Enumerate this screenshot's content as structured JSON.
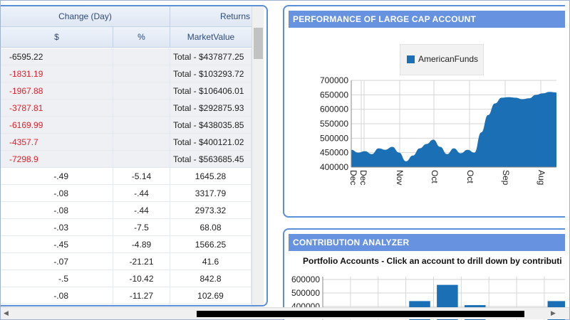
{
  "grid": {
    "header_top": [
      "Change (Day)",
      "Returns"
    ],
    "header_sub": [
      "$",
      "%",
      "MarketValue"
    ],
    "totals": [
      {
        "change": "-6595.22",
        "market": "Total - $437877.25",
        "neg": false
      },
      {
        "change": "-1831.19",
        "market": "Total - $103293.72",
        "neg": true
      },
      {
        "change": "-1967.88",
        "market": "Total - $106406.01",
        "neg": true
      },
      {
        "change": "-3787.81",
        "market": "Total - $292875.93",
        "neg": true
      },
      {
        "change": "-6169.99",
        "market": "Total - $438035.85",
        "neg": true
      },
      {
        "change": "-4357.7",
        "market": "Total - $400121.02",
        "neg": true
      },
      {
        "change": "-7298.9",
        "market": "Total - $563685.45",
        "neg": true
      }
    ],
    "details": [
      {
        "change": "-.49",
        "pct": "-5.14",
        "market": "1645.28"
      },
      {
        "change": "-.08",
        "pct": "-.44",
        "market": "3317.79"
      },
      {
        "change": "-.08",
        "pct": "-.44",
        "market": "2973.32"
      },
      {
        "change": "-.03",
        "pct": "-7.5",
        "market": "68.08"
      },
      {
        "change": "-.45",
        "pct": "-4.89",
        "market": "1566.25"
      },
      {
        "change": "-.07",
        "pct": "-21.21",
        "market": "41.6"
      },
      {
        "change": "-.5",
        "pct": "-10.42",
        "market": "842.8"
      },
      {
        "change": "-.08",
        "pct": "-11.27",
        "market": "102.69"
      }
    ]
  },
  "performance": {
    "title": "PERFORMANCE OF LARGE CAP ACCOUNT",
    "legend_label": "AmericanFunds"
  },
  "contribution": {
    "title": "CONTRIBUTION ANALYZER",
    "subtitle": "Portfolio Accounts - Click an account to drill down by contributi"
  },
  "colors": {
    "series": "#1a6fb5",
    "panel_title_bg": "#6692e0",
    "negative": "#e0202a"
  },
  "chart_data": [
    {
      "type": "area",
      "series": [
        {
          "name": "AmericanFunds",
          "values": [
            460000,
            450000,
            455000,
            445000,
            465000,
            460000,
            470000,
            450000,
            420000,
            440000,
            465000,
            480000,
            495000,
            470000,
            445000,
            465000,
            448000,
            460000,
            450000,
            520000,
            580000,
            620000,
            640000,
            642000,
            640000,
            635000,
            638000,
            650000,
            655000,
            660000,
            658000
          ]
        }
      ],
      "x_tick_labels": [
        "Dec",
        "Dec",
        "Nov",
        "Oct",
        "Oct",
        "Sep",
        "Aug"
      ],
      "y_ticks": [
        400000,
        450000,
        500000,
        550000,
        600000,
        650000,
        700000
      ],
      "ylim": [
        400000,
        700000
      ],
      "legend": "top-center",
      "grid": true
    },
    {
      "type": "bar",
      "y_ticks": [
        400000,
        500000,
        600000
      ],
      "ylim": [
        400000,
        600000
      ],
      "values": [
        400000,
        400000,
        400000,
        440000,
        560000,
        410000,
        400000,
        400000,
        440000
      ],
      "grid": true
    }
  ]
}
